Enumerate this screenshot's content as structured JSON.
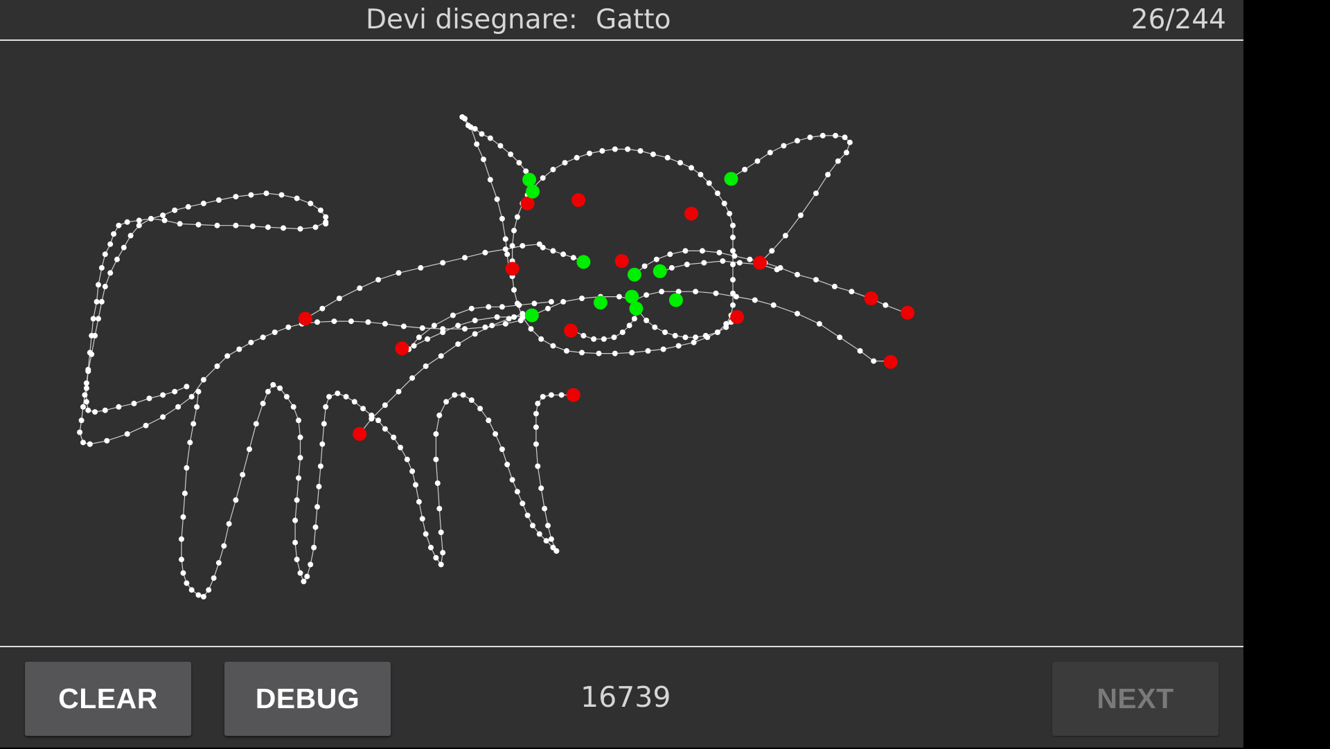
{
  "header": {
    "prompt_label": "Devi disegnare:",
    "target_word": "Gatto",
    "progress": "26/244"
  },
  "canvas": {
    "stroke_color": "#ffffff",
    "line_color": "#cfcfcf",
    "match_color": "#00ee00",
    "miss_color": "#ee0000"
  },
  "footer": {
    "clear_label": "CLEAR",
    "debug_label": "DEBUG",
    "score": "16739",
    "next_label": "NEXT"
  }
}
